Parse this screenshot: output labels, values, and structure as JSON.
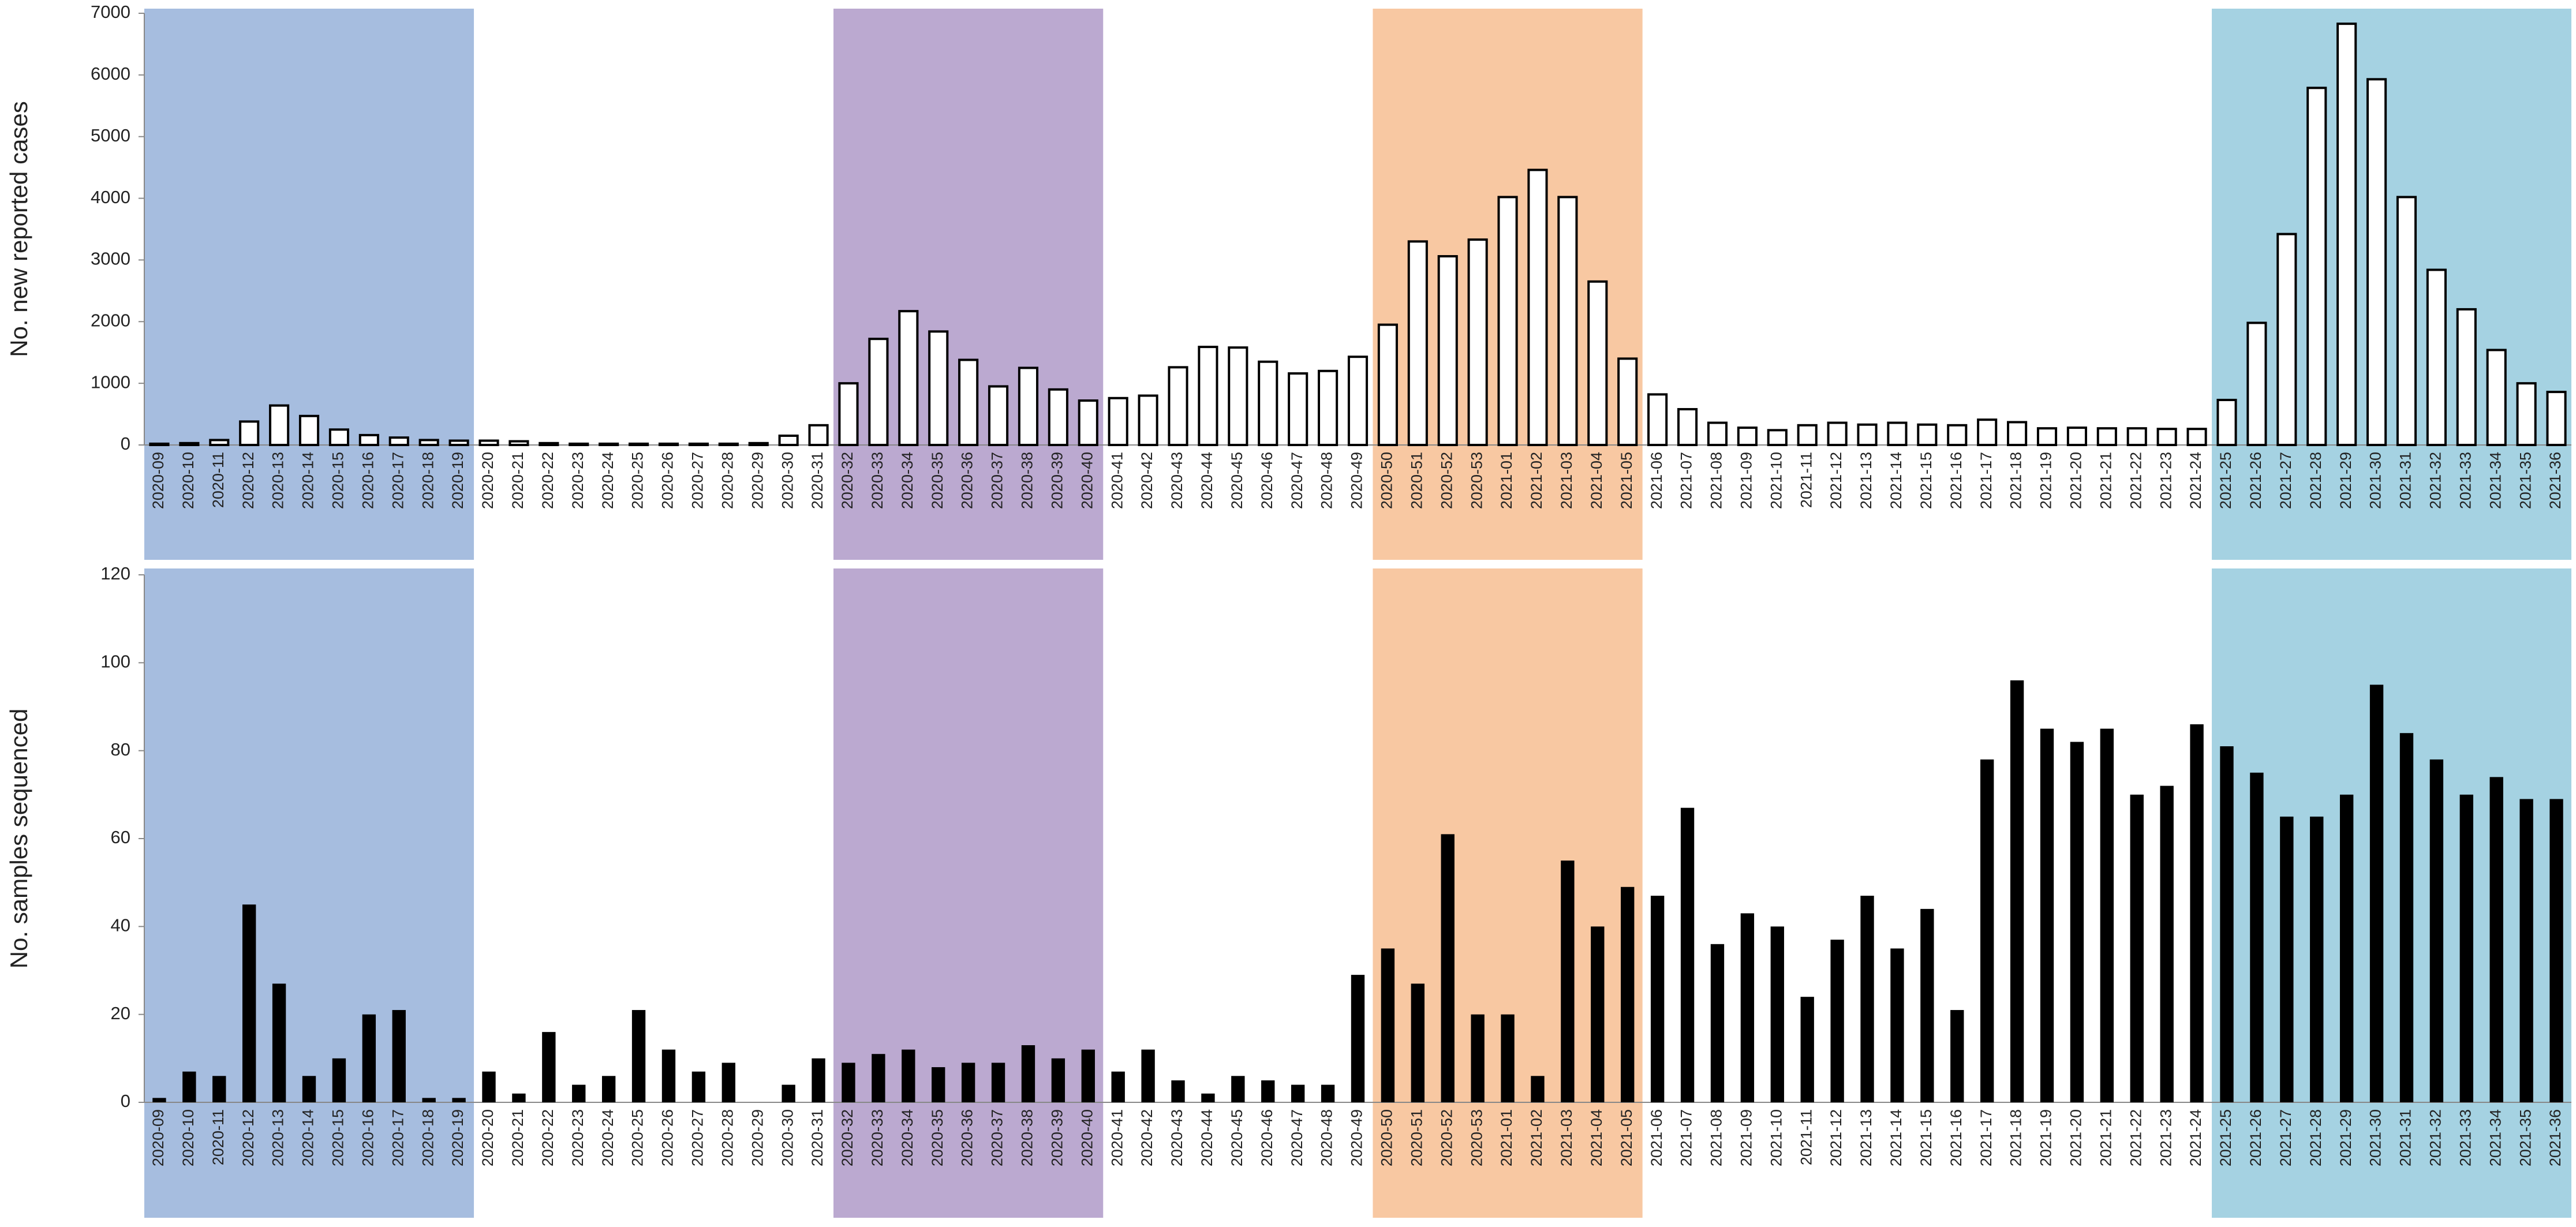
{
  "chart_data": [
    {
      "type": "bar",
      "ylabel": "No. new  reported cases",
      "categories": [
        "2020-09",
        "2020-10",
        "2020-11",
        "2020-12",
        "2020-13",
        "2020-14",
        "2020-15",
        "2020-16",
        "2020-17",
        "2020-18",
        "2020-19",
        "2020-20",
        "2020-21",
        "2020-22",
        "2020-23",
        "2020-24",
        "2020-25",
        "2020-26",
        "2020-27",
        "2020-28",
        "2020-29",
        "2020-30",
        "2020-31",
        "2020-32",
        "2020-33",
        "2020-34",
        "2020-35",
        "2020-36",
        "2020-37",
        "2020-38",
        "2020-39",
        "2020-40",
        "2020-41",
        "2020-42",
        "2020-43",
        "2020-44",
        "2020-45",
        "2020-46",
        "2020-47",
        "2020-48",
        "2020-49",
        "2020-50",
        "2020-51",
        "2020-52",
        "2020-53",
        "2021-01",
        "2021-02",
        "2021-03",
        "2021-04",
        "2021-05",
        "2021-06",
        "2021-07",
        "2021-08",
        "2021-09",
        "2021-10",
        "2021-11",
        "2021-12",
        "2021-13",
        "2021-14",
        "2021-15",
        "2021-16",
        "2021-17",
        "2021-18",
        "2021-19",
        "2021-20",
        "2021-21",
        "2021-22",
        "2021-23",
        "2021-24",
        "2021-25",
        "2021-26",
        "2021-27",
        "2021-28",
        "2021-29",
        "2021-30",
        "2021-31",
        "2021-32",
        "2021-33",
        "2021-34",
        "2021-35",
        "2021-36"
      ],
      "values": [
        20,
        30,
        80,
        380,
        640,
        470,
        250,
        160,
        120,
        80,
        70,
        70,
        60,
        30,
        20,
        20,
        20,
        20,
        20,
        20,
        30,
        150,
        320,
        1000,
        1720,
        2170,
        1840,
        1380,
        950,
        1250,
        900,
        720,
        760,
        800,
        1260,
        1590,
        1580,
        1350,
        1160,
        1200,
        1430,
        1950,
        3300,
        3060,
        3330,
        4020,
        4460,
        4020,
        2650,
        1400,
        820,
        580,
        360,
        280,
        240,
        320,
        360,
        330,
        360,
        330,
        320,
        410,
        370,
        270,
        280,
        270,
        270,
        260,
        260,
        730,
        1980,
        3420,
        5790,
        6830,
        5930,
        4020,
        2840,
        2200,
        1540,
        1000,
        860
      ],
      "color": "#ffffff",
      "edgecolor": "#000000",
      "ylim": [
        0,
        7000
      ],
      "yticks": [
        0,
        1000,
        2000,
        3000,
        4000,
        5000,
        6000,
        7000
      ],
      "bands": [
        {
          "from": "2020-09",
          "to": "2020-19",
          "color": "#a6bddf"
        },
        {
          "from": "2020-32",
          "to": "2020-40",
          "color": "#bba9d0"
        },
        {
          "from": "2020-50",
          "to": "2021-05",
          "color": "#f8c8a2"
        },
        {
          "from": "2021-25",
          "to": "2021-36",
          "color": "#a5d2e2"
        }
      ]
    },
    {
      "type": "bar",
      "ylabel": "No. samples sequenced",
      "categories": [
        "2020-09",
        "2020-10",
        "2020-11",
        "2020-12",
        "2020-13",
        "2020-14",
        "2020-15",
        "2020-16",
        "2020-17",
        "2020-18",
        "2020-19",
        "2020-20",
        "2020-21",
        "2020-22",
        "2020-23",
        "2020-24",
        "2020-25",
        "2020-26",
        "2020-27",
        "2020-28",
        "2020-29",
        "2020-30",
        "2020-31",
        "2020-32",
        "2020-33",
        "2020-34",
        "2020-35",
        "2020-36",
        "2020-37",
        "2020-38",
        "2020-39",
        "2020-40",
        "2020-41",
        "2020-42",
        "2020-43",
        "2020-44",
        "2020-45",
        "2020-46",
        "2020-47",
        "2020-48",
        "2020-49",
        "2020-50",
        "2020-51",
        "2020-52",
        "2020-53",
        "2021-01",
        "2021-02",
        "2021-03",
        "2021-04",
        "2021-05",
        "2021-06",
        "2021-07",
        "2021-08",
        "2021-09",
        "2021-10",
        "2021-11",
        "2021-12",
        "2021-13",
        "2021-14",
        "2021-15",
        "2021-16",
        "2021-17",
        "2021-18",
        "2021-19",
        "2021-20",
        "2021-21",
        "2021-22",
        "2021-23",
        "2021-24",
        "2021-25",
        "2021-26",
        "2021-27",
        "2021-28",
        "2021-29",
        "2021-30",
        "2021-31",
        "2021-32",
        "2021-33",
        "2021-34",
        "2021-35",
        "2021-36"
      ],
      "values": [
        1,
        7,
        6,
        45,
        27,
        6,
        10,
        20,
        21,
        1,
        1,
        7,
        2,
        16,
        4,
        6,
        21,
        12,
        7,
        9,
        0,
        4,
        10,
        9,
        11,
        12,
        8,
        9,
        9,
        13,
        10,
        12,
        7,
        12,
        5,
        2,
        6,
        5,
        4,
        4,
        29,
        35,
        27,
        61,
        20,
        20,
        6,
        55,
        40,
        49,
        47,
        67,
        36,
        43,
        40,
        24,
        37,
        47,
        35,
        44,
        21,
        78,
        96,
        85,
        82,
        85,
        70,
        72,
        86,
        81,
        75,
        65,
        65,
        70,
        95,
        84,
        78,
        70,
        74,
        69,
        69
      ],
      "color": "#000000",
      "ylim": [
        0,
        120
      ],
      "yticks": [
        0,
        20,
        40,
        60,
        80,
        100,
        120
      ],
      "bands": [
        {
          "from": "2020-09",
          "to": "2020-19",
          "color": "#a6bddf"
        },
        {
          "from": "2020-32",
          "to": "2020-40",
          "color": "#bba9d0"
        },
        {
          "from": "2020-50",
          "to": "2021-05",
          "color": "#f8c8a2"
        },
        {
          "from": "2021-25",
          "to": "2021-36",
          "color": "#a5d2e2"
        }
      ]
    }
  ]
}
